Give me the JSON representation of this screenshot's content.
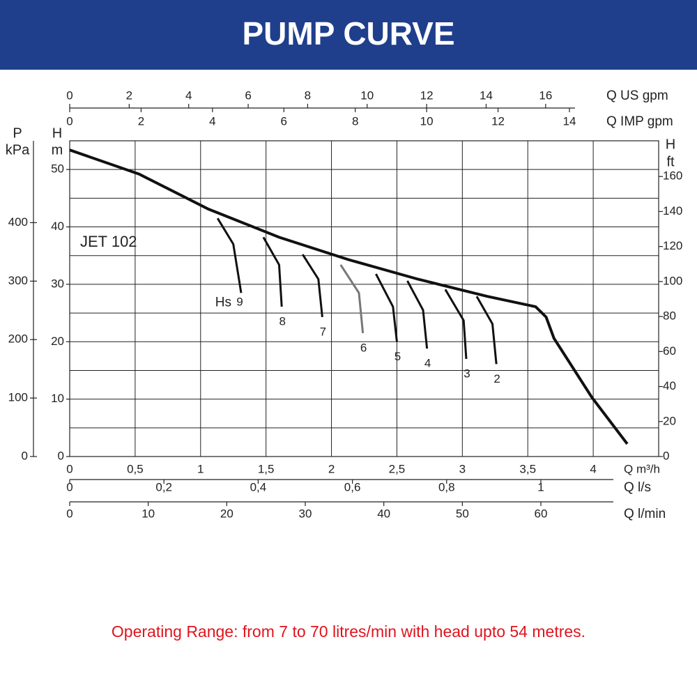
{
  "chart_data": {
    "type": "line",
    "title": "PUMP CURVE",
    "note": "Operating Range: from 7 to 70 litres/min with head upto 54 metres.",
    "xlabel": "Q m³/h",
    "ylabel": [
      "H",
      "m"
    ],
    "xlim": [
      0,
      4.5
    ],
    "xticks": [
      0,
      {
        "value": 0.5,
        "label": "0,5"
      },
      1,
      {
        "value": 1.5,
        "label": "1,5"
      },
      2,
      {
        "value": 2.5,
        "label": "2,5"
      },
      3,
      {
        "value": 3.5,
        "label": "3,5"
      },
      4
    ],
    "ylim": [
      0,
      55
    ],
    "yticks": [
      0,
      10,
      20,
      30,
      40,
      50
    ],
    "ygrid": [
      5,
      10,
      15,
      20,
      25,
      30,
      35,
      40,
      45,
      50
    ],
    "grid": true,
    "top_axes": [
      {
        "label": "Q US gpm",
        "lim": [
          0,
          19.8
        ],
        "ticks": [
          0,
          2,
          4,
          6,
          8,
          10,
          12,
          14,
          16
        ]
      },
      {
        "label": "Q IMP gpm",
        "lim": [
          0,
          16.5
        ],
        "ticks": [
          0,
          2,
          4,
          6,
          8,
          10,
          12,
          14
        ]
      }
    ],
    "bottom_axes": [
      {
        "label": "Q l/s",
        "lim": [
          0,
          1.25
        ],
        "ticks": [
          0,
          {
            "value": 0.2,
            "label": "0,2"
          },
          {
            "value": 0.4,
            "label": "0,4"
          },
          {
            "value": 0.6,
            "label": "0,6"
          },
          {
            "value": 0.8,
            "label": "0,8"
          },
          1
        ]
      },
      {
        "label": "Q l/min",
        "lim": [
          0,
          75
        ],
        "ticks": [
          0,
          10,
          20,
          30,
          40,
          50,
          60
        ]
      }
    ],
    "left_axis": {
      "label": [
        "P",
        "kPa"
      ],
      "lim": [
        0,
        540
      ],
      "ticks": [
        0,
        100,
        200,
        300,
        400
      ]
    },
    "right_axis": {
      "label": [
        "H",
        "ft"
      ],
      "lim": [
        0,
        180.4
      ],
      "ticks": [
        0,
        20,
        40,
        60,
        80,
        100,
        120,
        140,
        160
      ]
    },
    "series": [
      {
        "name": "JET 102",
        "color": "#111111",
        "x": [
          0,
          0.53,
          1.06,
          1.6,
          2.13,
          2.66,
          3.19,
          3.56,
          3.64,
          3.7,
          3.99,
          4.26
        ],
        "values": [
          53.4,
          49.2,
          43.1,
          38.2,
          34.3,
          30.9,
          27.9,
          26.1,
          24.3,
          20.6,
          10.3,
          2.2
        ]
      }
    ],
    "hs_label": "Hs",
    "hs_curves": [
      {
        "name": "9",
        "color": "#111111",
        "x": [
          1.13,
          1.25,
          1.31
        ],
        "values": [
          41.5,
          37.0,
          28.5
        ]
      },
      {
        "name": "8",
        "color": "#111111",
        "x": [
          1.48,
          1.6,
          1.62
        ],
        "values": [
          38.2,
          33.4,
          26.1
        ]
      },
      {
        "name": "7",
        "color": "#111111",
        "x": [
          1.78,
          1.9,
          1.93
        ],
        "values": [
          35.2,
          30.9,
          24.3
        ]
      },
      {
        "name": "6",
        "color": "#777777",
        "x": [
          2.07,
          2.21,
          2.24
        ],
        "values": [
          33.4,
          28.5,
          21.5
        ]
      },
      {
        "name": "5",
        "color": "#111111",
        "x": [
          2.34,
          2.47,
          2.5
        ],
        "values": [
          31.8,
          26.1,
          20.0
        ]
      },
      {
        "name": "4",
        "color": "#111111",
        "x": [
          2.58,
          2.7,
          2.73
        ],
        "values": [
          30.6,
          25.5,
          18.8
        ]
      },
      {
        "name": "3",
        "color": "#111111",
        "x": [
          2.87,
          3.01,
          3.03
        ],
        "values": [
          29.1,
          23.7,
          17.0
        ]
      },
      {
        "name": "2",
        "color": "#111111",
        "x": [
          3.11,
          3.23,
          3.26
        ],
        "values": [
          27.9,
          23.1,
          16.1
        ]
      }
    ]
  }
}
